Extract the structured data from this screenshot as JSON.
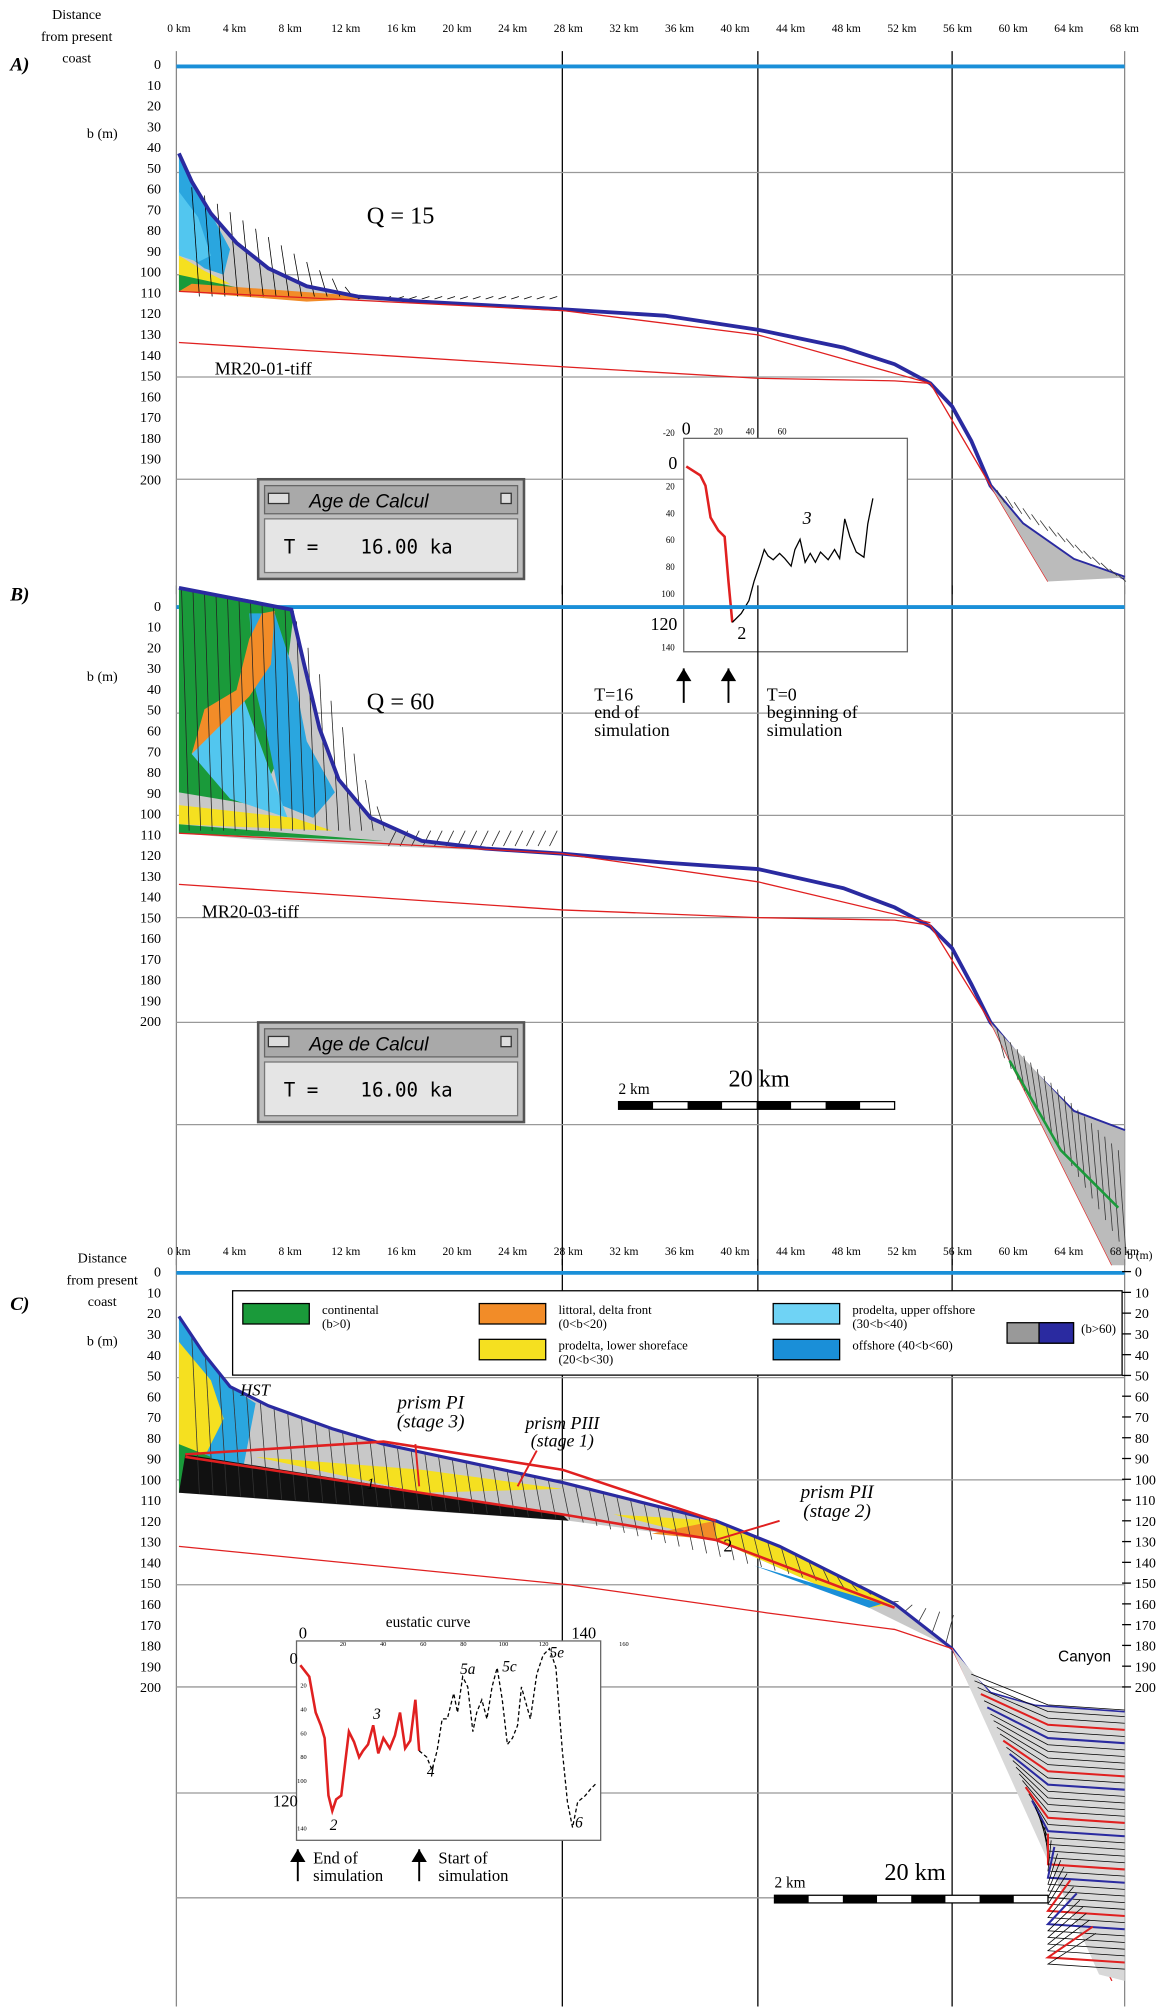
{
  "panel_a": {
    "label": "A)",
    "axis_title": [
      "Distance",
      "from present",
      "coast"
    ],
    "km_labels": [
      "0 km",
      "4 km",
      "8 km",
      "12 km",
      "16 km",
      "20 km",
      "24 km",
      "28 km",
      "32 km",
      "36 km",
      "40 km",
      "44 km",
      "48 km",
      "52 km",
      "56 km",
      "60 km",
      "64 km",
      "68 km"
    ],
    "depth_title": "b (m)",
    "depth_labels": [
      "0",
      "10",
      "20",
      "30",
      "40",
      "50",
      "60",
      "70",
      "80",
      "90",
      "100",
      "110",
      "120",
      "130",
      "140",
      "150",
      "160",
      "170",
      "180",
      "190",
      "200"
    ],
    "q": "Q = 15",
    "profile": "MR20-01-tiff",
    "window": {
      "title": "Age de Calcul",
      "t": "T =",
      "age": "16.00 ka"
    },
    "inset": {
      "x_labels": [
        "0",
        "20",
        "40",
        "60"
      ],
      "y_labels": [
        "-20",
        "0",
        "20",
        "40",
        "60",
        "80",
        "100",
        "120",
        "140"
      ],
      "points": [
        "3",
        "2"
      ]
    }
  },
  "panel_b": {
    "label": "B)",
    "depth_title": "b (m)",
    "depth_labels": [
      "0",
      "10",
      "20",
      "30",
      "40",
      "50",
      "60",
      "70",
      "80",
      "90",
      "100",
      "110",
      "120",
      "130",
      "140",
      "150",
      "160",
      "170",
      "180",
      "190",
      "200"
    ],
    "q": "Q = 60",
    "profile": "MR20-03-tiff",
    "window": {
      "title": "Age de Calcul",
      "t": "T =",
      "age": "16.00 ka"
    },
    "arrow_end": [
      "T=16",
      "end of",
      "simulation"
    ],
    "arrow_start": [
      "T=0",
      "beginning of",
      "simulation"
    ],
    "scale_small": "2 km",
    "scale_big": "20 km"
  },
  "panel_c": {
    "label": "C)",
    "axis_title": [
      "Distance",
      "from present",
      "coast"
    ],
    "km_labels": [
      "0 km",
      "4 km",
      "8 km",
      "12 km",
      "16 km",
      "20 km",
      "24 km",
      "28 km",
      "32 km",
      "36 km",
      "40 km",
      "44 km",
      "48 km",
      "52 km",
      "56 km",
      "60 km",
      "64 km",
      "68 km"
    ],
    "depth_title": "b (m)",
    "depth_labels": [
      "0",
      "10",
      "20",
      "30",
      "40",
      "50",
      "60",
      "70",
      "80",
      "90",
      "100",
      "110",
      "120",
      "130",
      "140",
      "150",
      "160",
      "170",
      "180",
      "190",
      "200"
    ],
    "legend": [
      {
        "label": [
          "continental",
          "(b>0)"
        ]
      },
      {
        "label": [
          "littoral, delta front",
          "(0<b<20)"
        ]
      },
      {
        "label": [
          "prodelta, lower shoreface",
          "(20<b<30)"
        ]
      },
      {
        "label": [
          "prodelta, upper offshore",
          "(30<b<40)"
        ]
      },
      {
        "label": [
          "offshore (40<b<60)"
        ]
      },
      {
        "label": [
          "(b>60)"
        ]
      }
    ],
    "hst": "HST",
    "prism_pi": [
      "prism PI",
      "(stage 3)"
    ],
    "prism_piii": [
      "prism PIII",
      "(stage 1)"
    ],
    "prism_pii": [
      "prism PII",
      "(stage 2)"
    ],
    "marks": [
      "1",
      "2"
    ],
    "inset": {
      "title": "eustatic curve",
      "x_labels": [
        "0",
        "20",
        "40",
        "60",
        "80",
        "100",
        "120",
        "140",
        "160"
      ],
      "y_labels": [
        "0",
        "20",
        "40",
        "60",
        "80",
        "100",
        "120",
        "140"
      ],
      "points": [
        "3",
        "2",
        "4",
        "5a",
        "5c",
        "5e",
        "6"
      ]
    },
    "arrow_end": [
      "End of",
      "simulation"
    ],
    "arrow_start": [
      "Start of",
      "simulation"
    ],
    "canyon": "Canyon",
    "scale_small": "2 km",
    "scale_big": "20 km"
  }
}
